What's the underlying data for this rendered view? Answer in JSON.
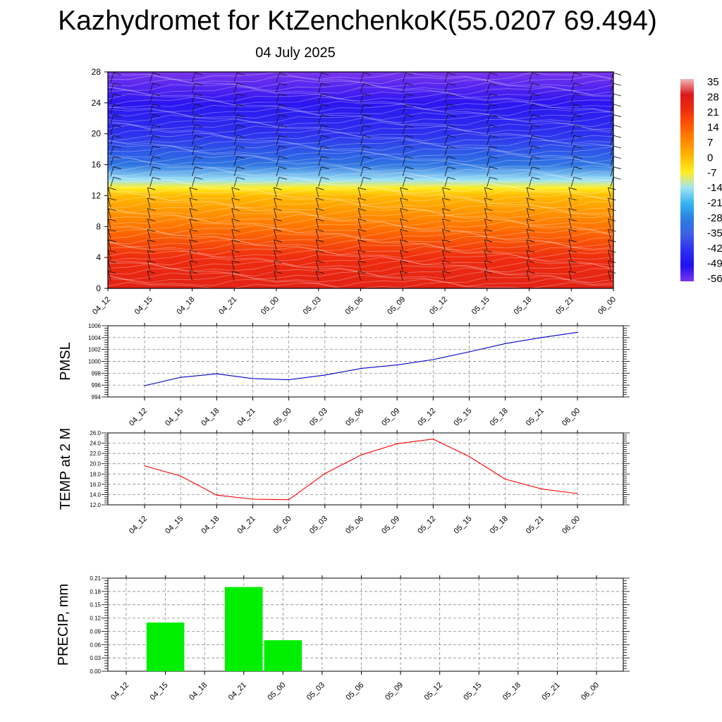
{
  "title": "Kazhydromet for KtZenchenkoK(55.0207 69.494)",
  "subtitle": "04 July 2025",
  "time_labels": [
    "04_12",
    "04_15",
    "04_18",
    "04_21",
    "05_00",
    "05_03",
    "05_06",
    "05_09",
    "05_12",
    "05_15",
    "05_18",
    "05_21",
    "06_00"
  ],
  "chart_data": [
    {
      "type": "heatmap",
      "name": "cross-section",
      "x": [
        "04_12",
        "04_15",
        "04_18",
        "04_21",
        "05_00",
        "05_03",
        "05_06",
        "05_09",
        "05_12",
        "05_15",
        "05_18",
        "05_21",
        "06_00"
      ],
      "yticks": [
        0,
        4,
        8,
        12,
        16,
        20,
        24,
        28
      ],
      "ylim": [
        0,
        28
      ],
      "colorbar": {
        "labels": [
          "35",
          "28",
          "21",
          "14",
          "7",
          "0",
          "-7",
          "-14",
          "-21",
          "-28",
          "-35",
          "-42",
          "-49",
          "-56"
        ],
        "colors": [
          "#f4b8b8",
          "#d91a1a",
          "#ef2d0f",
          "#ff5a00",
          "#ff8a00",
          "#ffbb00",
          "#ffee22",
          "#9fe3f5",
          "#35b4ee",
          "#2a7ee0",
          "#3d5fe6",
          "#2d30ee",
          "#1f10f0",
          "#7a35ee"
        ]
      },
      "temperature_profile": [
        {
          "level": 0,
          "value": 25
        },
        {
          "level": 4,
          "value": 21
        },
        {
          "level": 8,
          "value": 10
        },
        {
          "level": 12,
          "value": 0
        },
        {
          "level": 13,
          "value": -7
        },
        {
          "level": 14,
          "value": -14
        },
        {
          "level": 16,
          "value": -30
        },
        {
          "level": 20,
          "value": -42
        },
        {
          "level": 24,
          "value": -50
        },
        {
          "level": 28,
          "value": -56
        }
      ]
    },
    {
      "type": "line",
      "name": "pmsl",
      "ylabel": "PMSL",
      "x": [
        "04_12",
        "04_15",
        "04_18",
        "04_21",
        "05_00",
        "05_03",
        "05_06",
        "05_09",
        "05_12",
        "05_15",
        "05_18",
        "05_21",
        "06_00"
      ],
      "values": [
        995.9,
        997.3,
        997.9,
        997.1,
        996.9,
        997.7,
        998.8,
        999.4,
        1000.3,
        1001.6,
        1003.0,
        1004.0,
        1004.9
      ],
      "ylim": [
        994,
        1006
      ],
      "yticks": [
        "994",
        "996",
        "998",
        "1000",
        "1002",
        "1004",
        "1006"
      ],
      "color": "#0000cc"
    },
    {
      "type": "line",
      "name": "temp2m",
      "ylabel": "TEMP at 2 M",
      "x": [
        "04_12",
        "04_15",
        "04_18",
        "04_21",
        "05_00",
        "05_03",
        "05_06",
        "05_09",
        "05_12",
        "05_15",
        "05_18",
        "05_21",
        "06_00"
      ],
      "values": [
        19.6,
        17.6,
        13.9,
        13.1,
        13.0,
        18.1,
        21.7,
        23.9,
        24.8,
        21.4,
        17.0,
        15.1,
        14.2
      ],
      "ylim": [
        12,
        26
      ],
      "yticks": [
        "12.0",
        "14.0",
        "16.0",
        "18.0",
        "20.0",
        "22.0",
        "24.0",
        "26.0"
      ],
      "color": "#ff0000"
    },
    {
      "type": "bar",
      "name": "precip",
      "ylabel": "PRECIP, mm",
      "categories": [
        "04_12",
        "04_15",
        "04_18",
        "04_21",
        "05_00",
        "05_03",
        "05_06",
        "05_09",
        "05_12",
        "05_15",
        "05_18",
        "05_21",
        "06_00"
      ],
      "values": [
        0,
        0.11,
        0,
        0.19,
        0.07,
        0,
        0,
        0,
        0,
        0,
        0,
        0,
        0
      ],
      "ylim": [
        0,
        0.21
      ],
      "yticks": [
        "0.00",
        "0.03",
        "0.06",
        "0.09",
        "0.12",
        "0.15",
        "0.18",
        "0.21"
      ],
      "color": "#00ee00"
    }
  ]
}
